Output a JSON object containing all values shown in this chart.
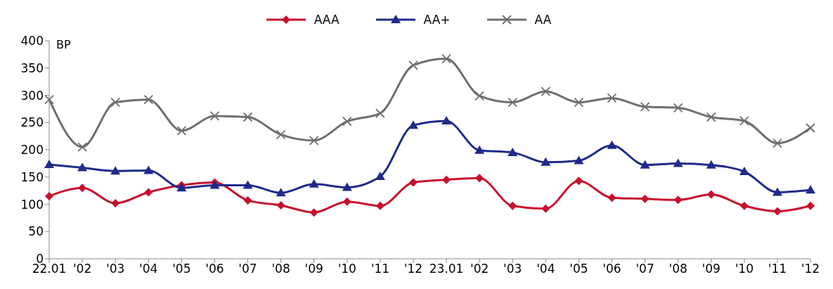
{
  "chart_data": {
    "type": "line",
    "ylabel": "BP",
    "categories": [
      "22.01",
      "'02",
      "'03",
      "'04",
      "'05",
      "'06",
      "'07",
      "'08",
      "'09",
      "'10",
      "'11",
      "'12",
      "23.01",
      "'02",
      "'03",
      "'04",
      "'05",
      "'06",
      "'07",
      "'08",
      "'09",
      "'10",
      "'11",
      "'12"
    ],
    "series": [
      {
        "name": "AAA",
        "color": "#c8102e",
        "marker": "diamond",
        "values": [
          115,
          130,
          102,
          122,
          135,
          140,
          107,
          98,
          85,
          105,
          97,
          140,
          145,
          148,
          97,
          92,
          143,
          112,
          110,
          108,
          118,
          97,
          87,
          97
        ]
      },
      {
        "name": "AA+",
        "color": "#1f2a8a",
        "marker": "triangle",
        "values": [
          173,
          167,
          161,
          162,
          130,
          135,
          135,
          121,
          137,
          131,
          151,
          245,
          253,
          199,
          195,
          177,
          180,
          208,
          172,
          175,
          172,
          160,
          122,
          126
        ]
      },
      {
        "name": "AA",
        "color": "#6e6e6e",
        "marker": "cross",
        "values": [
          292,
          205,
          287,
          292,
          235,
          262,
          260,
          228,
          217,
          252,
          267,
          355,
          367,
          299,
          287,
          307,
          287,
          295,
          279,
          277,
          260,
          253,
          212,
          240
        ]
      }
    ],
    "ylim": [
      0,
      400
    ],
    "yticks": [
      0,
      50,
      100,
      150,
      200,
      250,
      300,
      350,
      400
    ],
    "grid": false,
    "legend": "top",
    "line_style": "solid"
  }
}
